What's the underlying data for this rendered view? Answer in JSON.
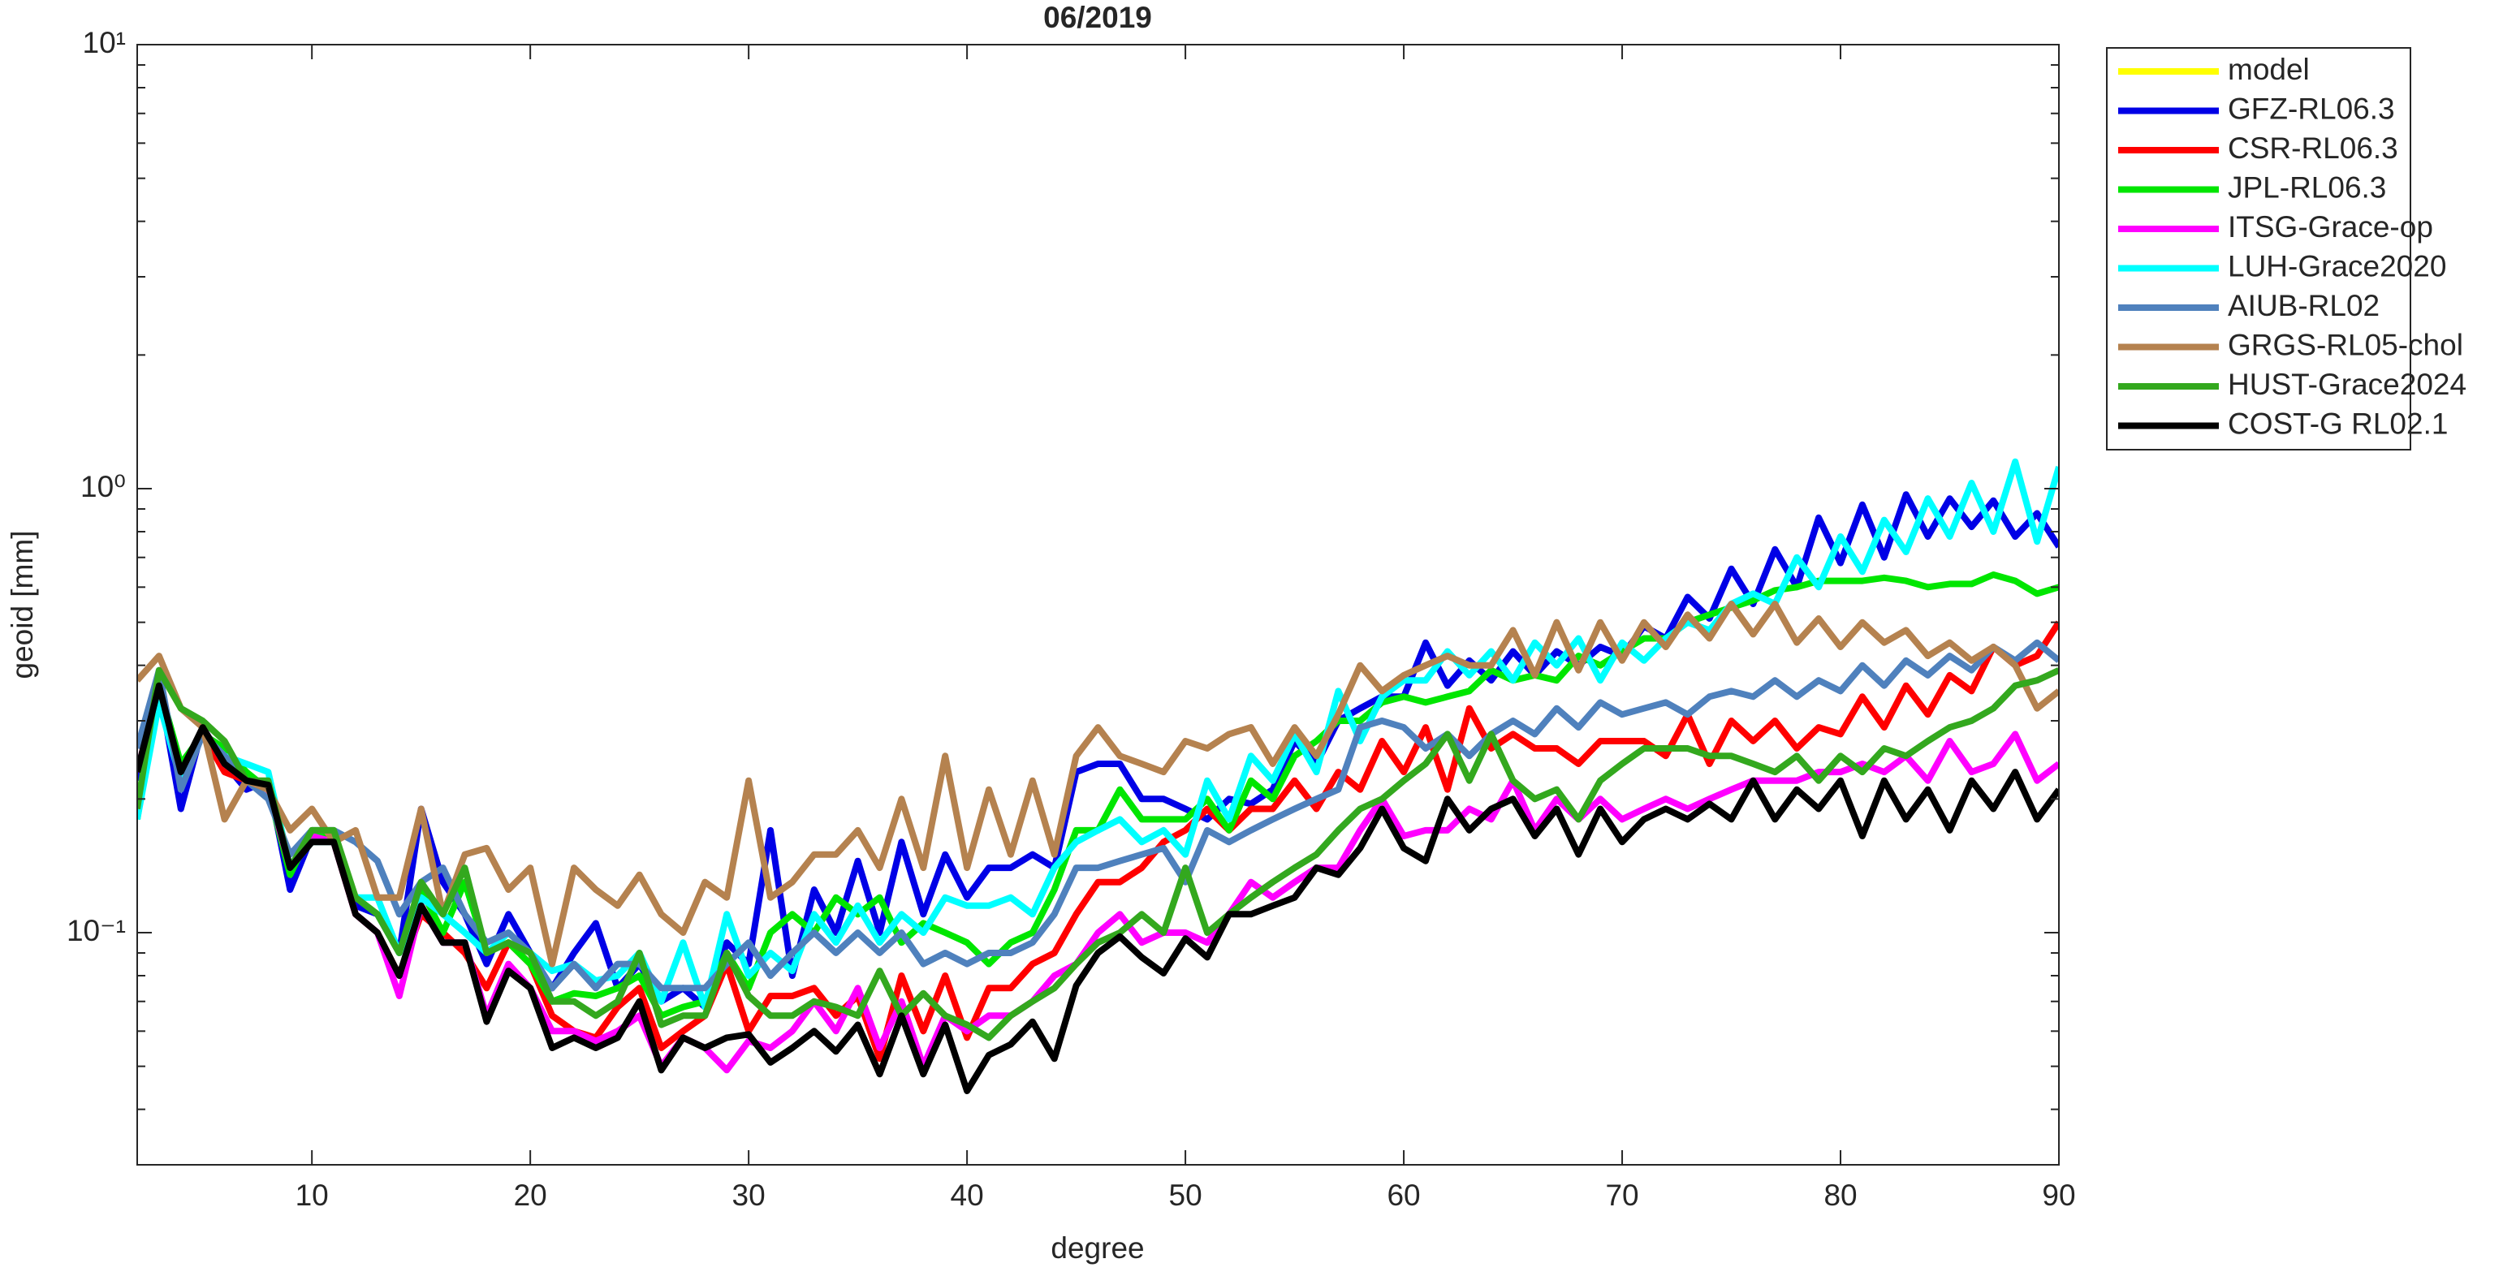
{
  "chart_data": {
    "type": "line",
    "title": "06/2019",
    "xlabel": "degree",
    "ylabel": "geoid [mm]",
    "log_y": true,
    "grid": false,
    "legend": "outside-right-top",
    "xlim": [
      2,
      90
    ],
    "xticks": [
      10,
      20,
      30,
      40,
      50,
      60,
      70,
      80,
      90
    ],
    "ylim": [
      0.03,
      10
    ],
    "yticks": [
      {
        "value": 0.1,
        "label": "10⁻¹"
      },
      {
        "value": 1,
        "label": "10⁰"
      },
      {
        "value": 10,
        "label": "10¹"
      }
    ],
    "yminorticks": [
      0.04,
      0.05,
      0.06,
      0.07,
      0.08,
      0.09,
      0.2,
      0.3,
      0.4,
      0.5,
      0.6,
      0.7,
      0.8,
      0.9,
      2,
      3,
      4,
      5,
      6,
      7,
      8,
      9
    ],
    "x": [
      2,
      3,
      4,
      5,
      6,
      7,
      8,
      9,
      10,
      11,
      12,
      13,
      14,
      15,
      16,
      17,
      18,
      19,
      20,
      21,
      22,
      23,
      24,
      25,
      26,
      27,
      28,
      29,
      30,
      31,
      32,
      33,
      34,
      35,
      36,
      37,
      38,
      39,
      40,
      41,
      42,
      43,
      44,
      45,
      46,
      47,
      48,
      49,
      50,
      51,
      52,
      53,
      54,
      55,
      56,
      57,
      58,
      59,
      60,
      61,
      62,
      63,
      64,
      65,
      66,
      67,
      68,
      69,
      70,
      71,
      72,
      73,
      74,
      75,
      76,
      77,
      78,
      79,
      80,
      81,
      82,
      83,
      84,
      85,
      86,
      87,
      88,
      89,
      90
    ],
    "series": [
      {
        "name": "model",
        "color": "#ffff00",
        "values": [
          null,
          null,
          null,
          null,
          null,
          null,
          null,
          null,
          null,
          null,
          null,
          null,
          null,
          null,
          null,
          null,
          null,
          null,
          null,
          null,
          null,
          null,
          null,
          null,
          null,
          null,
          null,
          null,
          null,
          null,
          null,
          null,
          null,
          null,
          null,
          null,
          null,
          null,
          null,
          null,
          null,
          null,
          null,
          null,
          null,
          null,
          null,
          null,
          null,
          null,
          null,
          null,
          null,
          null,
          null,
          null,
          null,
          null,
          null,
          null,
          null,
          null,
          null,
          null,
          null,
          null,
          null,
          null,
          null,
          null,
          null,
          null,
          null,
          null,
          null,
          null,
          null,
          null,
          null,
          null,
          null,
          null,
          null,
          null,
          null,
          null,
          null,
          null,
          null
        ]
      },
      {
        "name": "GFZ-RL06.3",
        "color": "#0000e6",
        "values": [
          0.22,
          0.36,
          0.19,
          0.29,
          0.24,
          0.21,
          0.22,
          0.125,
          0.165,
          0.16,
          0.115,
          0.11,
          0.09,
          0.19,
          0.13,
          0.11,
          0.085,
          0.11,
          0.09,
          0.075,
          0.09,
          0.105,
          0.075,
          0.085,
          0.07,
          0.075,
          0.068,
          0.095,
          0.085,
          0.17,
          0.08,
          0.125,
          0.1,
          0.145,
          0.1,
          0.16,
          0.11,
          0.15,
          0.12,
          0.14,
          0.14,
          0.15,
          0.14,
          0.23,
          0.24,
          0.24,
          0.2,
          0.2,
          0.19,
          0.18,
          0.2,
          0.195,
          0.21,
          0.27,
          0.24,
          0.3,
          0.32,
          0.34,
          0.34,
          0.45,
          0.36,
          0.41,
          0.37,
          0.43,
          0.38,
          0.43,
          0.4,
          0.44,
          0.42,
          0.49,
          0.46,
          0.57,
          0.51,
          0.66,
          0.55,
          0.73,
          0.6,
          0.86,
          0.68,
          0.92,
          0.7,
          0.97,
          0.78,
          0.95,
          0.82,
          0.94,
          0.78,
          0.88,
          0.74
        ]
      },
      {
        "name": "CSR-RL06.3",
        "color": "#ff0000",
        "values": [
          0.23,
          0.36,
          0.23,
          0.28,
          0.23,
          0.22,
          0.21,
          0.14,
          0.16,
          0.16,
          0.11,
          0.1,
          0.08,
          0.11,
          0.1,
          0.09,
          0.075,
          0.095,
          0.085,
          0.065,
          0.06,
          0.058,
          0.068,
          0.075,
          0.055,
          0.06,
          0.065,
          0.085,
          0.06,
          0.072,
          0.072,
          0.075,
          0.065,
          0.072,
          0.052,
          0.08,
          0.06,
          0.08,
          0.058,
          0.075,
          0.075,
          0.085,
          0.09,
          0.11,
          0.13,
          0.13,
          0.14,
          0.16,
          0.17,
          0.19,
          0.17,
          0.19,
          0.19,
          0.22,
          0.19,
          0.23,
          0.21,
          0.27,
          0.23,
          0.29,
          0.21,
          0.32,
          0.26,
          0.28,
          0.26,
          0.26,
          0.24,
          0.27,
          0.27,
          0.27,
          0.25,
          0.31,
          0.24,
          0.3,
          0.27,
          0.3,
          0.26,
          0.29,
          0.28,
          0.34,
          0.29,
          0.36,
          0.31,
          0.38,
          0.35,
          0.44,
          0.4,
          0.42,
          0.5
        ]
      },
      {
        "name": "JPL-RL06.3",
        "color": "#00e600",
        "values": [
          0.18,
          0.36,
          0.24,
          0.28,
          0.26,
          0.23,
          0.21,
          0.135,
          0.17,
          0.16,
          0.12,
          0.11,
          0.09,
          0.125,
          0.1,
          0.13,
          0.09,
          0.095,
          0.085,
          0.07,
          0.073,
          0.072,
          0.075,
          0.08,
          0.065,
          0.068,
          0.07,
          0.09,
          0.075,
          0.1,
          0.11,
          0.1,
          0.12,
          0.11,
          0.12,
          0.095,
          0.105,
          0.1,
          0.095,
          0.085,
          0.095,
          0.1,
          0.125,
          0.17,
          0.17,
          0.21,
          0.18,
          0.18,
          0.18,
          0.2,
          0.17,
          0.22,
          0.2,
          0.25,
          0.27,
          0.3,
          0.3,
          0.33,
          0.34,
          0.33,
          0.34,
          0.35,
          0.39,
          0.37,
          0.38,
          0.37,
          0.42,
          0.4,
          0.43,
          0.46,
          0.46,
          0.5,
          0.52,
          0.54,
          0.56,
          0.59,
          0.6,
          0.62,
          0.62,
          0.62,
          0.63,
          0.62,
          0.6,
          0.61,
          0.61,
          0.64,
          0.62,
          0.58,
          0.6
        ]
      },
      {
        "name": "ITSG-Grace-op",
        "color": "#ff00ff",
        "values": [
          0.23,
          0.36,
          0.22,
          0.29,
          0.24,
          0.22,
          0.21,
          0.14,
          0.165,
          0.16,
          0.11,
          0.1,
          0.072,
          0.115,
          0.095,
          0.095,
          0.065,
          0.085,
          0.075,
          0.06,
          0.06,
          0.057,
          0.06,
          0.065,
          0.05,
          0.058,
          0.055,
          0.049,
          0.057,
          0.055,
          0.06,
          0.07,
          0.06,
          0.075,
          0.055,
          0.07,
          0.05,
          0.065,
          0.06,
          0.065,
          0.065,
          0.07,
          0.08,
          0.085,
          0.1,
          0.11,
          0.095,
          0.1,
          0.1,
          0.095,
          0.11,
          0.13,
          0.12,
          0.13,
          0.14,
          0.14,
          0.17,
          0.2,
          0.165,
          0.17,
          0.17,
          0.19,
          0.18,
          0.22,
          0.17,
          0.2,
          0.18,
          0.2,
          0.18,
          0.19,
          0.2,
          0.19,
          0.2,
          0.21,
          0.22,
          0.22,
          0.22,
          0.23,
          0.23,
          0.24,
          0.23,
          0.25,
          0.22,
          0.27,
          0.23,
          0.24,
          0.28,
          0.22,
          0.24
        ]
      },
      {
        "name": "LUH-Grace2020",
        "color": "#00ffff",
        "values": [
          0.18,
          0.33,
          0.22,
          0.28,
          0.25,
          0.24,
          0.23,
          0.14,
          0.16,
          0.16,
          0.12,
          0.12,
          0.09,
          0.12,
          0.11,
          0.1,
          0.09,
          0.1,
          0.09,
          0.082,
          0.085,
          0.078,
          0.08,
          0.09,
          0.07,
          0.095,
          0.068,
          0.11,
          0.08,
          0.09,
          0.082,
          0.11,
          0.095,
          0.115,
          0.095,
          0.11,
          0.1,
          0.12,
          0.115,
          0.115,
          0.12,
          0.11,
          0.14,
          0.16,
          0.17,
          0.18,
          0.16,
          0.17,
          0.15,
          0.22,
          0.18,
          0.25,
          0.22,
          0.28,
          0.23,
          0.35,
          0.27,
          0.34,
          0.37,
          0.37,
          0.43,
          0.38,
          0.43,
          0.37,
          0.45,
          0.4,
          0.46,
          0.37,
          0.45,
          0.41,
          0.46,
          0.5,
          0.48,
          0.55,
          0.58,
          0.55,
          0.7,
          0.6,
          0.78,
          0.65,
          0.85,
          0.72,
          0.95,
          0.78,
          1.03,
          0.8,
          1.15,
          0.76,
          1.12
        ]
      },
      {
        "name": "AIUB-RL02",
        "color": "#4f81bd",
        "values": [
          0.26,
          0.39,
          0.21,
          0.28,
          0.25,
          0.22,
          0.2,
          0.15,
          0.17,
          0.17,
          0.16,
          0.145,
          0.11,
          0.13,
          0.14,
          0.11,
          0.095,
          0.1,
          0.09,
          0.075,
          0.085,
          0.075,
          0.085,
          0.085,
          0.075,
          0.075,
          0.075,
          0.085,
          0.095,
          0.08,
          0.09,
          0.1,
          0.09,
          0.1,
          0.09,
          0.1,
          0.085,
          0.09,
          0.085,
          0.09,
          0.09,
          0.095,
          0.11,
          0.14,
          0.14,
          0.145,
          0.15,
          0.155,
          0.13,
          0.17,
          0.16,
          0.17,
          0.18,
          0.19,
          0.2,
          0.21,
          0.29,
          0.3,
          0.29,
          0.26,
          0.28,
          0.25,
          0.28,
          0.3,
          0.28,
          0.32,
          0.29,
          0.33,
          0.31,
          0.32,
          0.33,
          0.31,
          0.34,
          0.35,
          0.34,
          0.37,
          0.34,
          0.37,
          0.35,
          0.4,
          0.36,
          0.41,
          0.38,
          0.42,
          0.39,
          0.44,
          0.41,
          0.45,
          0.41
        ]
      },
      {
        "name": "GRGS-RL05-chol",
        "color": "#b5824f",
        "values": [
          0.37,
          0.42,
          0.32,
          0.29,
          0.18,
          0.22,
          0.21,
          0.17,
          0.19,
          0.16,
          0.17,
          0.12,
          0.12,
          0.19,
          0.11,
          0.15,
          0.155,
          0.125,
          0.14,
          0.085,
          0.14,
          0.125,
          0.115,
          0.135,
          0.11,
          0.1,
          0.13,
          0.12,
          0.22,
          0.12,
          0.13,
          0.15,
          0.15,
          0.17,
          0.14,
          0.2,
          0.14,
          0.25,
          0.14,
          0.21,
          0.15,
          0.22,
          0.15,
          0.25,
          0.29,
          0.25,
          0.24,
          0.23,
          0.27,
          0.26,
          0.28,
          0.29,
          0.24,
          0.29,
          0.25,
          0.31,
          0.4,
          0.35,
          0.38,
          0.4,
          0.42,
          0.4,
          0.4,
          0.48,
          0.38,
          0.5,
          0.39,
          0.5,
          0.41,
          0.5,
          0.44,
          0.52,
          0.46,
          0.55,
          0.47,
          0.55,
          0.45,
          0.51,
          0.44,
          0.5,
          0.45,
          0.48,
          0.42,
          0.45,
          0.41,
          0.44,
          0.4,
          0.32,
          0.35
        ]
      },
      {
        "name": "HUST-Grace2024",
        "color": "#33a81e",
        "values": [
          0.19,
          0.39,
          0.32,
          0.3,
          0.27,
          0.22,
          0.22,
          0.14,
          0.17,
          0.17,
          0.12,
          0.11,
          0.09,
          0.13,
          0.11,
          0.14,
          0.09,
          0.095,
          0.09,
          0.07,
          0.07,
          0.065,
          0.07,
          0.09,
          0.062,
          0.065,
          0.065,
          0.09,
          0.072,
          0.065,
          0.065,
          0.07,
          0.068,
          0.065,
          0.082,
          0.065,
          0.073,
          0.065,
          0.062,
          0.058,
          0.065,
          0.07,
          0.075,
          0.085,
          0.095,
          0.1,
          0.11,
          0.1,
          0.14,
          0.1,
          0.11,
          0.12,
          0.13,
          0.14,
          0.15,
          0.17,
          0.19,
          0.2,
          0.22,
          0.24,
          0.28,
          0.22,
          0.28,
          0.22,
          0.2,
          0.21,
          0.18,
          0.22,
          0.24,
          0.26,
          0.26,
          0.26,
          0.25,
          0.25,
          0.24,
          0.23,
          0.25,
          0.22,
          0.25,
          0.23,
          0.26,
          0.25,
          0.27,
          0.29,
          0.3,
          0.32,
          0.36,
          0.37,
          0.39
        ]
      },
      {
        "name": "COST-G RL02.1",
        "color": "#000000",
        "values": [
          0.23,
          0.36,
          0.23,
          0.29,
          0.24,
          0.22,
          0.215,
          0.14,
          0.16,
          0.16,
          0.11,
          0.1,
          0.08,
          0.115,
          0.095,
          0.095,
          0.063,
          0.082,
          0.075,
          0.055,
          0.058,
          0.055,
          0.058,
          0.07,
          0.049,
          0.058,
          0.055,
          0.058,
          0.059,
          0.051,
          0.055,
          0.06,
          0.054,
          0.062,
          0.048,
          0.065,
          0.048,
          0.062,
          0.044,
          0.053,
          0.056,
          0.063,
          0.052,
          0.076,
          0.09,
          0.098,
          0.088,
          0.081,
          0.097,
          0.088,
          0.11,
          0.11,
          0.115,
          0.12,
          0.14,
          0.135,
          0.155,
          0.19,
          0.155,
          0.145,
          0.2,
          0.17,
          0.19,
          0.2,
          0.165,
          0.19,
          0.15,
          0.19,
          0.16,
          0.18,
          0.19,
          0.18,
          0.195,
          0.18,
          0.22,
          0.18,
          0.21,
          0.19,
          0.22,
          0.165,
          0.22,
          0.18,
          0.21,
          0.17,
          0.22,
          0.19,
          0.23,
          0.18,
          0.21
        ]
      }
    ]
  }
}
